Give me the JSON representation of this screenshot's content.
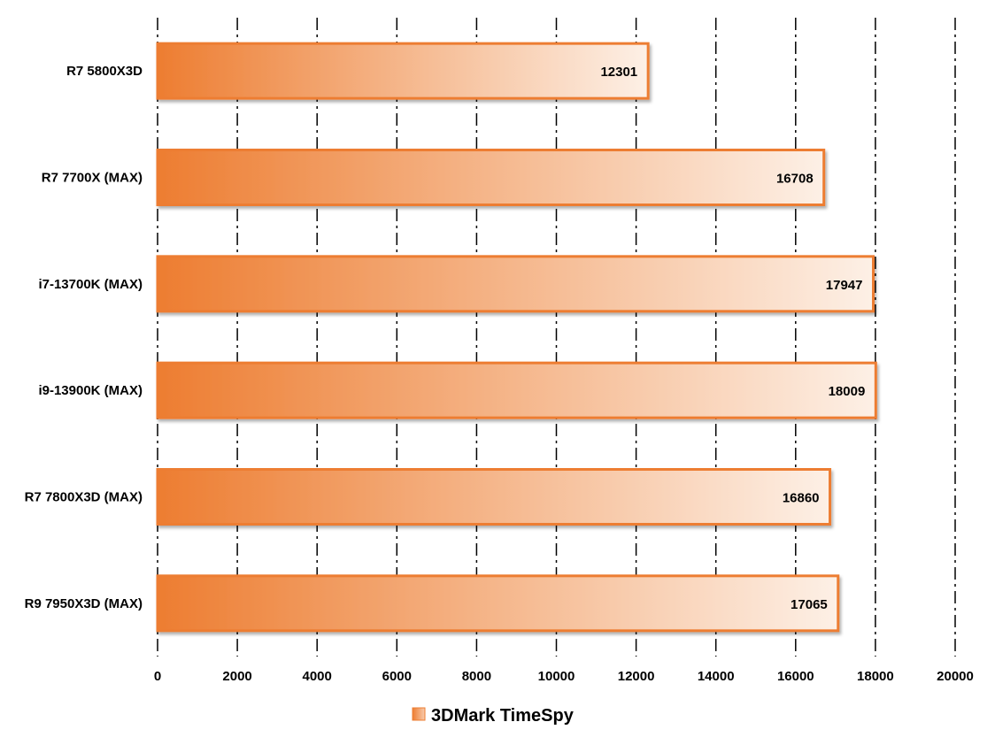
{
  "chart_data": {
    "type": "bar",
    "orientation": "horizontal",
    "title": "",
    "categories": [
      "R7 5800X3D",
      "R7 7700X (MAX)",
      "i7-13700K (MAX)",
      "i9-13900K (MAX)",
      "R7 7800X3D (MAX)",
      "R9 7950X3D (MAX)"
    ],
    "series": [
      {
        "name": "3DMark TimeSpy",
        "values": [
          12301,
          16708,
          17947,
          18009,
          16860,
          17065
        ]
      }
    ],
    "xlim": [
      0,
      20000
    ],
    "xticks": [
      0,
      2000,
      4000,
      6000,
      8000,
      10000,
      12000,
      14000,
      16000,
      18000,
      20000
    ],
    "grid": "vertical dash-dot",
    "legend": "bottom-center",
    "data_labels": true
  },
  "colors": {
    "bar_dark": "#ed7d31",
    "bar_light": "#fde9db",
    "bar_border": "#ed7d31",
    "grid": "#000000"
  }
}
